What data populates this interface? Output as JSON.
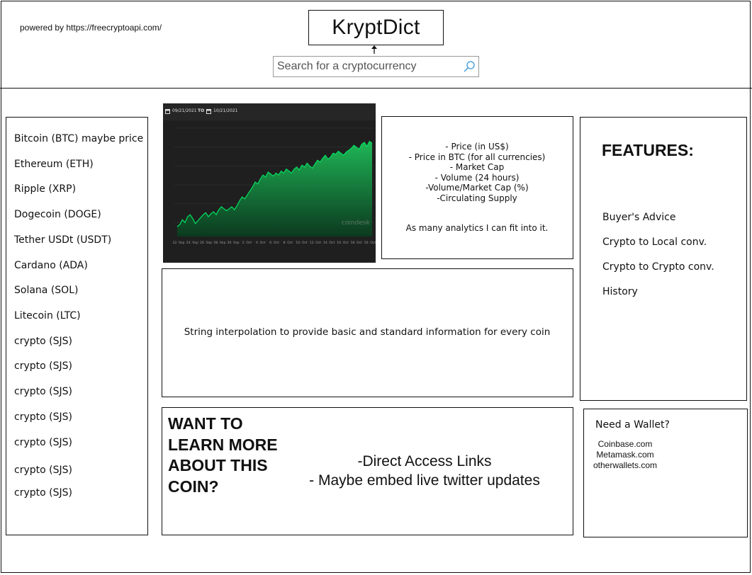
{
  "header": {
    "powered_by": "powered by https://freecryptoapi.com/",
    "logo": "KryptDict",
    "search_placeholder": "Search for a cryptocurrency",
    "search_icon": "search-icon"
  },
  "sidebar": {
    "coins": [
      "Bitcoin (BTC) maybe price",
      "Ethereum (ETH)",
      "Ripple (XRP)",
      "Dogecoin (DOGE)",
      "Tether USDt (USDT)",
      "Cardano (ADA)",
      "Solana (SOL)",
      "Litecoin (LTC)",
      "crypto (SJS)",
      "crypto (SJS)",
      "crypto (SJS)",
      "crypto (SJS)",
      "crypto (SJS)",
      "crypto (SJS)",
      "crypto (SJS)"
    ]
  },
  "chart": {
    "date_from": "09/21/2021",
    "date_to_label": "TO",
    "date_to": "10/21/2021",
    "watermark": "coindesk",
    "x_ticks": [
      "22. Sep",
      "24. Sep",
      "26. Sep",
      "28. Sep",
      "30. Sep",
      "2. Oct",
      "4. Oct",
      "6. Oct",
      "8. Oct",
      "10. Oct",
      "12. Oct",
      "14. Oct",
      "16. Oct",
      "18. Oct",
      "20. Oct"
    ],
    "line_color": "#00c853",
    "fill_color": "#0f7a3a"
  },
  "stats": {
    "items": [
      "- Price (in US$)",
      "- Price in BTC (for all currencies)",
      "- Market Cap",
      "- Volume (24 hours)",
      "-Volume/Market Cap (%)",
      "-Circulating Supply"
    ],
    "note": "As many analytics I can fit into it."
  },
  "features": {
    "title": "FEATURES:",
    "items": [
      "Buyer's Advice",
      "Crypto to Local conv.",
      "Crypto to Crypto conv.",
      "History"
    ]
  },
  "info": {
    "text": "String interpolation to provide basic and standard information for every coin"
  },
  "learn": {
    "title_lines": [
      "WANT TO",
      "LEARN MORE",
      "ABOUT THIS",
      "COIN?"
    ],
    "links": [
      "-Direct Access Links",
      "- Maybe embed live twitter updates"
    ]
  },
  "wallet": {
    "title": "Need a Wallet?",
    "links": [
      "Coinbase.com",
      "Metamask.com",
      "otherwallets.com"
    ]
  }
}
